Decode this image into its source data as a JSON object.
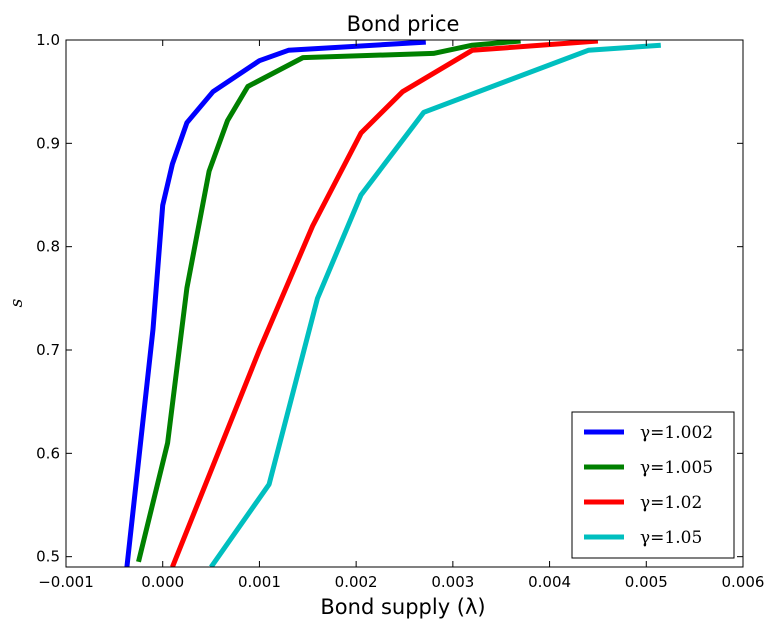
{
  "chart_data": {
    "type": "line",
    "title": "Bond price",
    "xlabel": "Bond supply (λ)",
    "ylabel": "s",
    "xlim": [
      -0.001,
      0.006
    ],
    "ylim": [
      0.49,
      1.0
    ],
    "x_ticks": [
      "−0.001",
      "0.000",
      "0.001",
      "0.002",
      "0.003",
      "0.004",
      "0.005",
      "0.006"
    ],
    "y_ticks": [
      "0.5",
      "0.6",
      "0.7",
      "0.8",
      "0.9",
      "1.0"
    ],
    "grid": false,
    "legend_position": "lower-right",
    "series": [
      {
        "name": "γ=1.002",
        "color": "#0000ff",
        "points": [
          [
            -0.00037,
            0.49
          ],
          [
            -0.0001,
            0.72
          ],
          [
            0.0,
            0.84
          ],
          [
            0.0001,
            0.88
          ],
          [
            0.00025,
            0.92
          ],
          [
            0.00052,
            0.95
          ],
          [
            0.001,
            0.98
          ],
          [
            0.0013,
            0.99
          ],
          [
            0.00272,
            0.998
          ]
        ]
      },
      {
        "name": "γ=1.005",
        "color": "#008000",
        "points": [
          [
            -0.00025,
            0.495
          ],
          [
            5e-05,
            0.61
          ],
          [
            0.00025,
            0.76
          ],
          [
            0.00048,
            0.873
          ],
          [
            0.00067,
            0.922
          ],
          [
            0.00088,
            0.955
          ],
          [
            0.00145,
            0.983
          ],
          [
            0.0028,
            0.987
          ],
          [
            0.0032,
            0.995
          ],
          [
            0.0037,
            0.999
          ]
        ]
      },
      {
        "name": "γ=1.02",
        "color": "#ff0000",
        "points": [
          [
            0.0001,
            0.49
          ],
          [
            0.001,
            0.7
          ],
          [
            0.00155,
            0.82
          ],
          [
            0.00205,
            0.91
          ],
          [
            0.00248,
            0.95
          ],
          [
            0.0032,
            0.99
          ],
          [
            0.0045,
            0.999
          ]
        ]
      },
      {
        "name": "γ=1.05",
        "color": "#00bfbf",
        "points": [
          [
            0.0005,
            0.49
          ],
          [
            0.0011,
            0.57
          ],
          [
            0.0016,
            0.75
          ],
          [
            0.00205,
            0.85
          ],
          [
            0.0027,
            0.93
          ],
          [
            0.0044,
            0.99
          ],
          [
            0.00515,
            0.995
          ]
        ]
      }
    ]
  }
}
